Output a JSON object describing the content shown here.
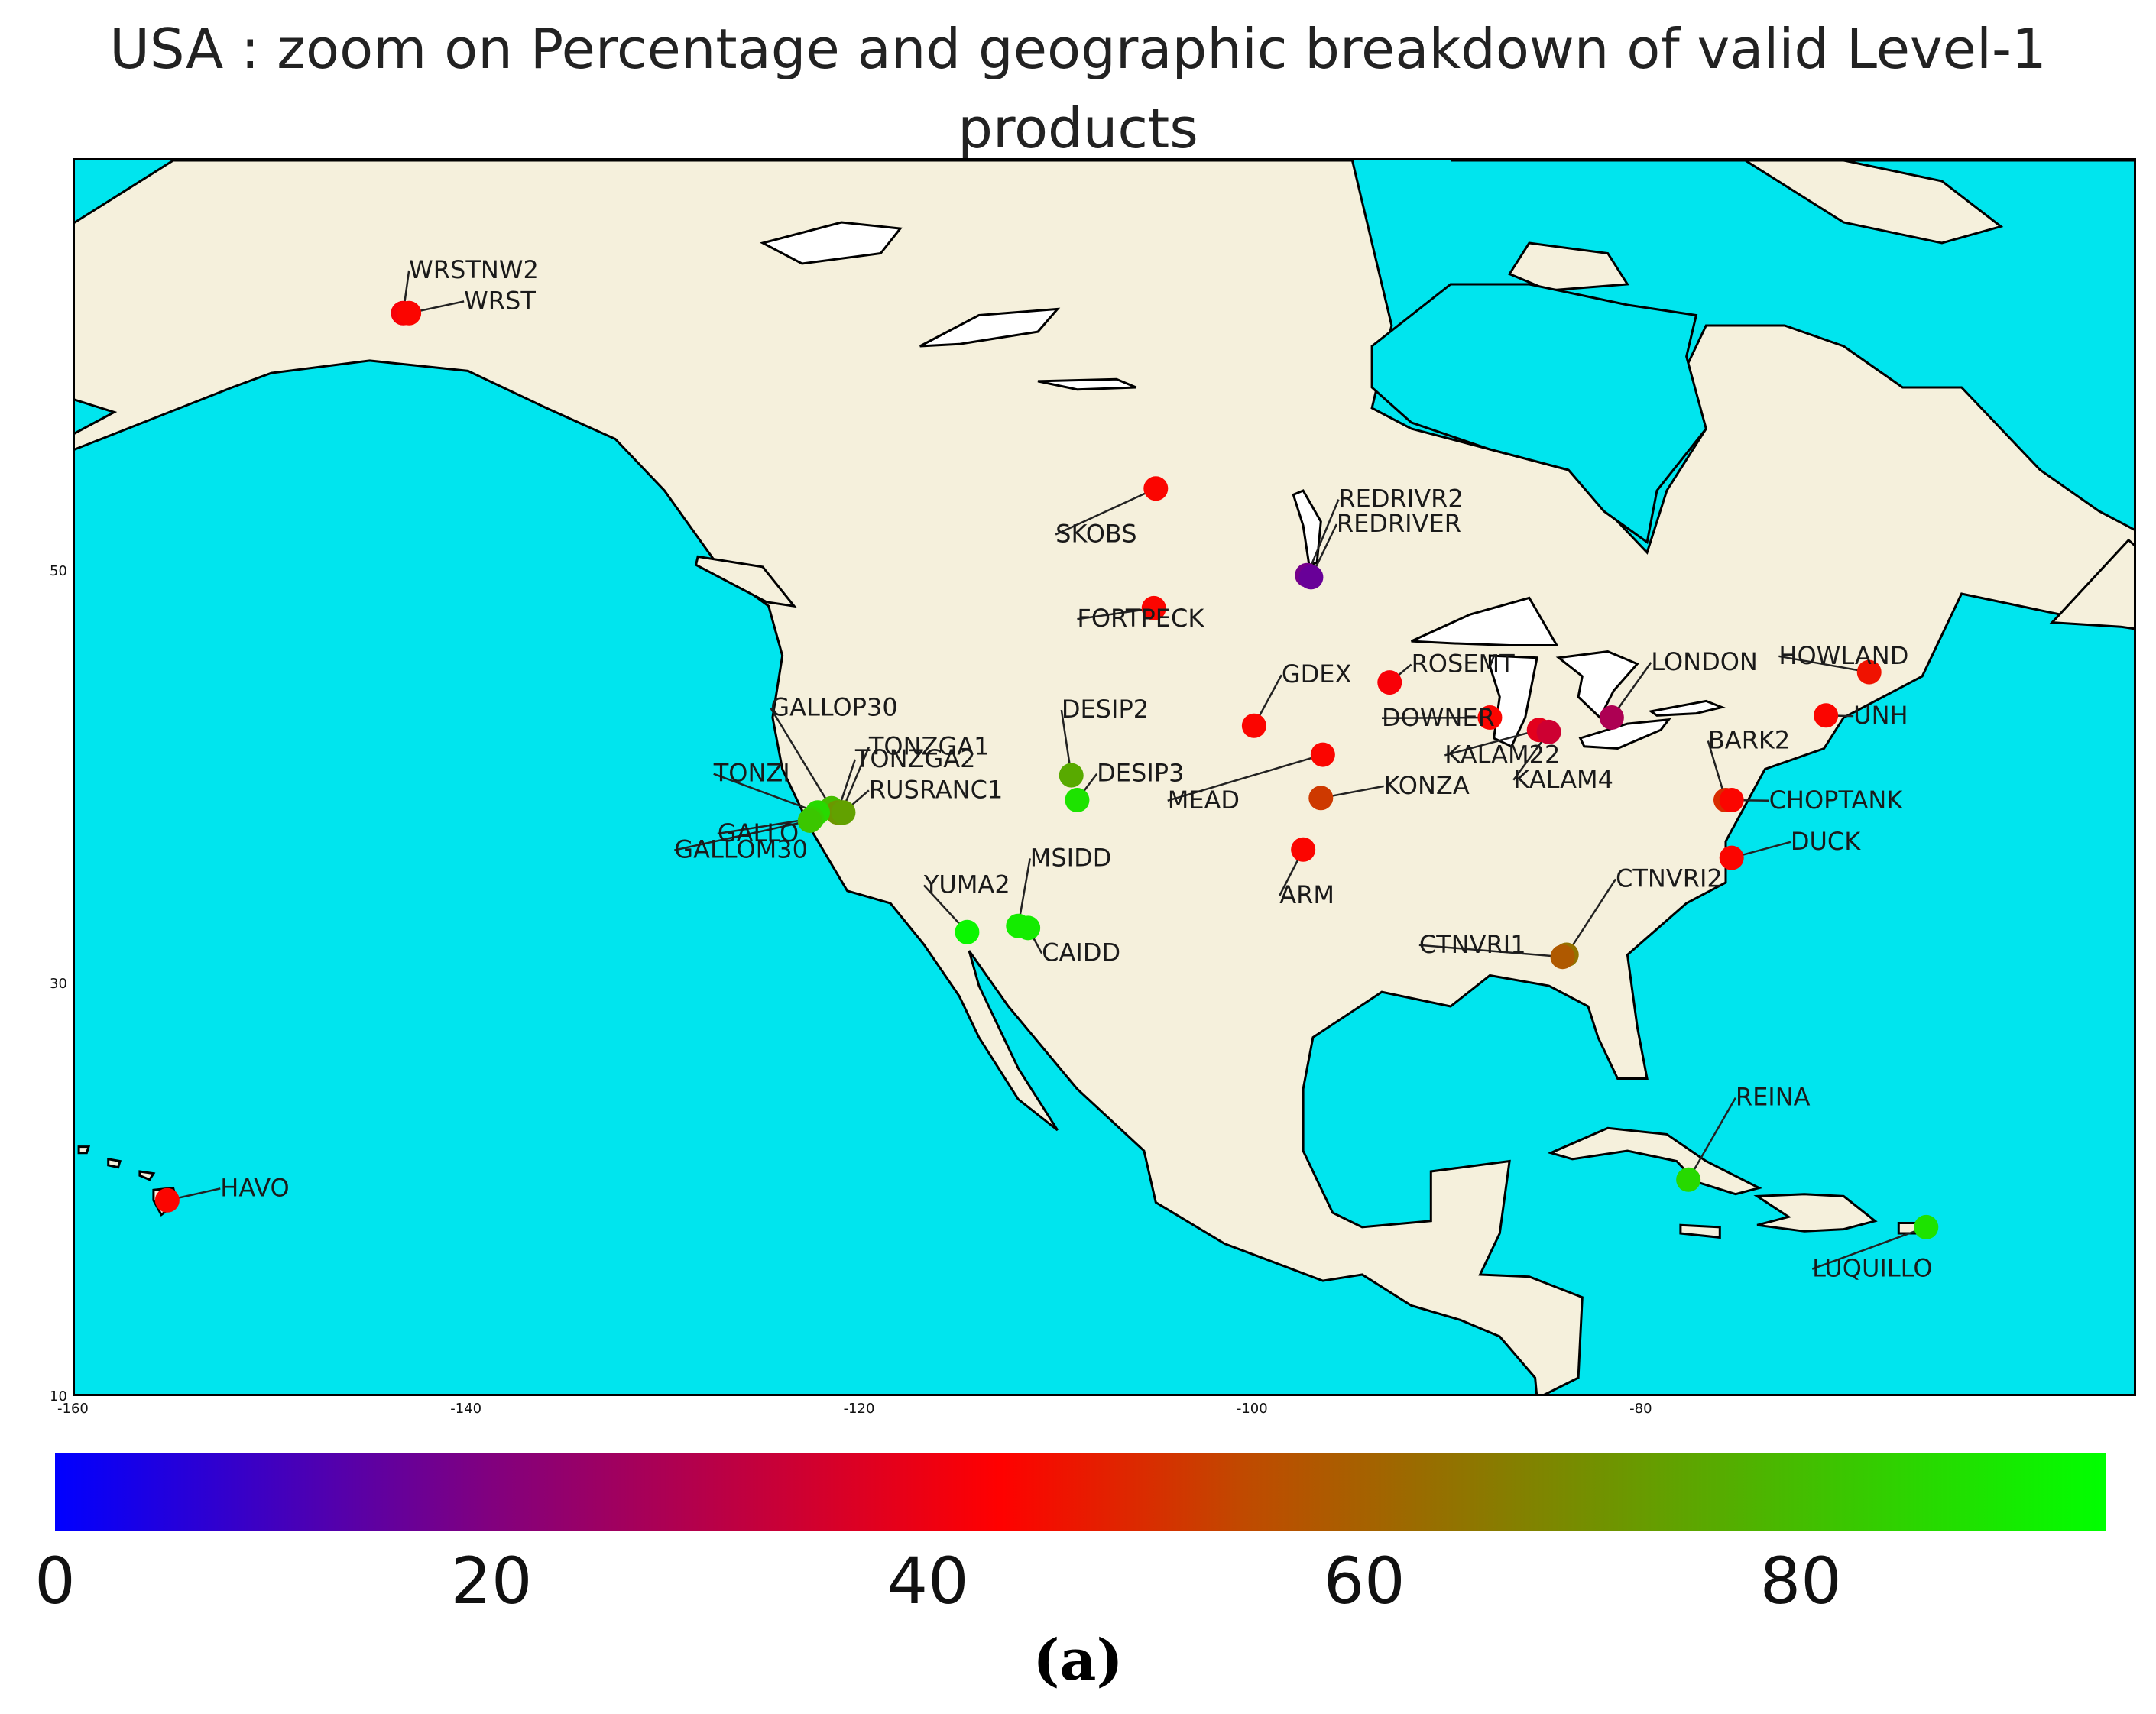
{
  "title": {
    "line1": "USA :  zoom on Percentage and geographic breakdown of valid Level-1",
    "line2": "products"
  },
  "colors": {
    "ocean": "#00e5ee",
    "land": "#f5f0dc",
    "lakes": "#ffffff",
    "coastline": "#000000"
  },
  "map": {
    "lon_range": [
      -160,
      -55
    ],
    "lat_range": [
      10,
      70
    ],
    "x_ticks": [
      "-160",
      "-140",
      "-120",
      "-100",
      "-80"
    ],
    "y_ticks": [
      "50",
      "30",
      "10"
    ]
  },
  "colorbar": {
    "ticks": [
      "0",
      "20",
      "40",
      "60",
      "80"
    ],
    "range": [
      0,
      94
    ],
    "colormap": [
      "#0000ff",
      "#800080",
      "#ff0000",
      "#c04a00",
      "#8a7a00",
      "#00ff00"
    ]
  },
  "caption": "(a)",
  "chart_data": {
    "type": "scatter",
    "title": "USA :  zoom on Percentage and geographic breakdown of valid Level-1 products",
    "value_unit": "percentage of valid Level-1 products",
    "legend": "colorbar-bottom",
    "sites": [
      {
        "name": "WRSTNW2",
        "lon": -143.3,
        "lat": 62.6,
        "value": 42
      },
      {
        "name": "WRST",
        "lon": -143.0,
        "lat": 62.6,
        "value": 44
      },
      {
        "name": "SKOBS",
        "lon": -105.0,
        "lat": 54.1,
        "value": 44
      },
      {
        "name": "REDRIVR2",
        "lon": -97.3,
        "lat": 49.9,
        "value": 18
      },
      {
        "name": "REDRIVER",
        "lon": -97.1,
        "lat": 49.8,
        "value": 16
      },
      {
        "name": "FORTPECK",
        "lon": -105.1,
        "lat": 48.3,
        "value": 44
      },
      {
        "name": "GDEX",
        "lon": -100.0,
        "lat": 42.6,
        "value": 44
      },
      {
        "name": "ROSEMT",
        "lon": -93.1,
        "lat": 44.7,
        "value": 42
      },
      {
        "name": "DOWNER",
        "lon": -88.0,
        "lat": 43.0,
        "value": 44
      },
      {
        "name": "KALAM22",
        "lon": -85.5,
        "lat": 42.4,
        "value": 38
      },
      {
        "name": "KALAM4",
        "lon": -85.0,
        "lat": 42.3,
        "value": 34
      },
      {
        "name": "LONDON",
        "lon": -81.8,
        "lat": 43.0,
        "value": 28
      },
      {
        "name": "HOWLAND",
        "lon": -68.7,
        "lat": 45.2,
        "value": 46
      },
      {
        "name": "UNH",
        "lon": -70.9,
        "lat": 43.1,
        "value": 44
      },
      {
        "name": "BARK2",
        "lon": -76.0,
        "lat": 39.0,
        "value": 50
      },
      {
        "name": "CHOPTANK",
        "lon": -75.7,
        "lat": 39.0,
        "value": 44
      },
      {
        "name": "DUCK",
        "lon": -75.7,
        "lat": 36.2,
        "value": 44
      },
      {
        "name": "MEAD",
        "lon": -96.5,
        "lat": 41.2,
        "value": 44
      },
      {
        "name": "KONZA",
        "lon": -96.6,
        "lat": 39.1,
        "value": 52
      },
      {
        "name": "ARM",
        "lon": -97.5,
        "lat": 36.6,
        "value": 44
      },
      {
        "name": "CTNVRI2",
        "lon": -84.1,
        "lat": 31.5,
        "value": 64
      },
      {
        "name": "CTNVRI1",
        "lon": -84.3,
        "lat": 31.4,
        "value": 58
      },
      {
        "name": "DESIP2",
        "lon": -109.3,
        "lat": 40.2,
        "value": 76
      },
      {
        "name": "DESIP3",
        "lon": -109.0,
        "lat": 39.0,
        "value": 88
      },
      {
        "name": "GALLOP30",
        "lon": -121.5,
        "lat": 38.6,
        "value": 80
      },
      {
        "name": "TONZGA1",
        "lon": -121.0,
        "lat": 38.4,
        "value": 70
      },
      {
        "name": "TONZGA2",
        "lon": -121.2,
        "lat": 38.4,
        "value": 72
      },
      {
        "name": "RUSRANC1",
        "lon": -120.9,
        "lat": 38.4,
        "value": 74
      },
      {
        "name": "TONZI",
        "lon": -122.2,
        "lat": 38.4,
        "value": 86
      },
      {
        "name": "GALLO",
        "lon": -122.5,
        "lat": 38.1,
        "value": 84
      },
      {
        "name": "GALLOM30",
        "lon": -122.6,
        "lat": 38.0,
        "value": 82
      },
      {
        "name": "YUMA2",
        "lon": -114.6,
        "lat": 32.6,
        "value": 92
      },
      {
        "name": "MSIDD",
        "lon": -112.0,
        "lat": 32.9,
        "value": 90
      },
      {
        "name": "CAIDD",
        "lon": -111.5,
        "lat": 32.8,
        "value": 90
      },
      {
        "name": "REINA",
        "lon": -77.9,
        "lat": 20.6,
        "value": 86
      },
      {
        "name": "LUQUILLO",
        "lon": -65.8,
        "lat": 18.3,
        "value": 88
      },
      {
        "name": "HAVO",
        "lon": -155.3,
        "lat": 19.6,
        "value": 44
      }
    ]
  },
  "labels": [
    {
      "text": "WRSTNW2",
      "lon": -143.0,
      "lat": 64.3,
      "anchor_lon": -143.3,
      "anchor_lat": 62.6
    },
    {
      "text": "WRST",
      "lon": -140.2,
      "lat": 62.8,
      "anchor_lon": -143.0,
      "anchor_lat": 62.6
    },
    {
      "text": "SKOBS",
      "lon": -110.1,
      "lat": 51.5,
      "anchor_lon": -105.0,
      "anchor_lat": 54.1
    },
    {
      "text": "REDRIVR2",
      "lon": -95.7,
      "lat": 53.2,
      "anchor_lon": -97.3,
      "anchor_lat": 49.9
    },
    {
      "text": "REDRIVER",
      "lon": -95.8,
      "lat": 52.0,
      "anchor_lon": -97.1,
      "anchor_lat": 49.8
    },
    {
      "text": "FORTPECK",
      "lon": -109.0,
      "lat": 47.4,
      "anchor_lon": -105.1,
      "anchor_lat": 48.3
    },
    {
      "text": "GDEX",
      "lon": -98.6,
      "lat": 44.7,
      "anchor_lon": -100.0,
      "anchor_lat": 42.6
    },
    {
      "text": "ROSEMT",
      "lon": -92.0,
      "lat": 45.2,
      "anchor_lon": -93.1,
      "anchor_lat": 44.7
    },
    {
      "text": "DOWNER",
      "lon": -93.5,
      "lat": 42.6,
      "anchor_lon": -88.0,
      "anchor_lat": 43.0
    },
    {
      "text": "LONDON",
      "lon": -79.8,
      "lat": 45.3,
      "anchor_lon": -81.8,
      "anchor_lat": 43.0
    },
    {
      "text": "HOWLAND",
      "lon": -73.3,
      "lat": 45.6,
      "anchor_lon": -68.7,
      "anchor_lat": 45.2
    },
    {
      "text": "UNH",
      "lon": -69.5,
      "lat": 42.7,
      "anchor_lon": -70.9,
      "anchor_lat": 43.1
    },
    {
      "text": "KALAM22",
      "lon": -90.3,
      "lat": 40.8,
      "anchor_lon": -85.5,
      "anchor_lat": 42.4
    },
    {
      "text": "KALAM4",
      "lon": -86.8,
      "lat": 39.6,
      "anchor_lon": -85.0,
      "anchor_lat": 42.3
    },
    {
      "text": "BARK2",
      "lon": -76.9,
      "lat": 41.5,
      "anchor_lon": -76.0,
      "anchor_lat": 39.0
    },
    {
      "text": "CHOPTANK",
      "lon": -73.8,
      "lat": 38.6,
      "anchor_lon": -75.7,
      "anchor_lat": 39.0
    },
    {
      "text": "DUCK",
      "lon": -72.7,
      "lat": 36.6,
      "anchor_lon": -75.7,
      "anchor_lat": 36.2
    },
    {
      "text": "MEAD",
      "lon": -104.4,
      "lat": 38.6,
      "anchor_lon": -96.5,
      "anchor_lat": 41.2
    },
    {
      "text": "KONZA",
      "lon": -93.4,
      "lat": 39.3,
      "anchor_lon": -96.6,
      "anchor_lat": 39.1
    },
    {
      "text": "ARM",
      "lon": -98.7,
      "lat": 34.0,
      "anchor_lon": -97.5,
      "anchor_lat": 36.6
    },
    {
      "text": "CTNVRI2",
      "lon": -81.6,
      "lat": 34.8,
      "anchor_lon": -84.1,
      "anchor_lat": 31.5
    },
    {
      "text": "CTNVRI1",
      "lon": -91.6,
      "lat": 31.6,
      "anchor_lon": -84.3,
      "anchor_lat": 31.4
    },
    {
      "text": "DESIP2",
      "lon": -109.8,
      "lat": 43.0,
      "anchor_lon": -109.3,
      "anchor_lat": 40.2
    },
    {
      "text": "DESIP3",
      "lon": -108.0,
      "lat": 39.9,
      "anchor_lon": -109.0,
      "anchor_lat": 39.0
    },
    {
      "text": "GALLOP30",
      "lon": -124.6,
      "lat": 43.1,
      "anchor_lon": -121.5,
      "anchor_lat": 38.6
    },
    {
      "text": "TONZGA1",
      "lon": -119.6,
      "lat": 41.2,
      "anchor_lon": -121.0,
      "anchor_lat": 38.4
    },
    {
      "text": "TONZGA2",
      "lon": -120.3,
      "lat": 40.6,
      "anchor_lon": -121.2,
      "anchor_lat": 38.4
    },
    {
      "text": "RUSRANC1",
      "lon": -119.6,
      "lat": 39.1,
      "anchor_lon": -120.9,
      "anchor_lat": 38.4
    },
    {
      "text": "TONZI",
      "lon": -127.5,
      "lat": 39.9,
      "anchor_lon": -122.2,
      "anchor_lat": 38.4
    },
    {
      "text": "GALLO",
      "lon": -127.3,
      "lat": 37.0,
      "anchor_lon": -122.5,
      "anchor_lat": 38.1
    },
    {
      "text": "GALLOM30",
      "lon": -129.5,
      "lat": 36.2,
      "anchor_lon": -122.6,
      "anchor_lat": 38.0
    },
    {
      "text": "YUMA2",
      "lon": -116.8,
      "lat": 34.5,
      "anchor_lon": -114.6,
      "anchor_lat": 32.6
    },
    {
      "text": "MSIDD",
      "lon": -111.4,
      "lat": 35.8,
      "anchor_lon": -112.0,
      "anchor_lat": 32.9
    },
    {
      "text": "CAIDD",
      "lon": -110.8,
      "lat": 31.2,
      "anchor_lon": -111.5,
      "anchor_lat": 32.8
    },
    {
      "text": "REINA",
      "lon": -75.5,
      "lat": 24.2,
      "anchor_lon": -77.9,
      "anchor_lat": 20.6
    },
    {
      "text": "LUQUILLO",
      "lon": -71.6,
      "lat": 15.9,
      "anchor_lon": -65.8,
      "anchor_lat": 18.3
    },
    {
      "text": "HAVO",
      "lon": -152.6,
      "lat": 19.8,
      "anchor_lon": -155.3,
      "anchor_lat": 19.6
    }
  ]
}
